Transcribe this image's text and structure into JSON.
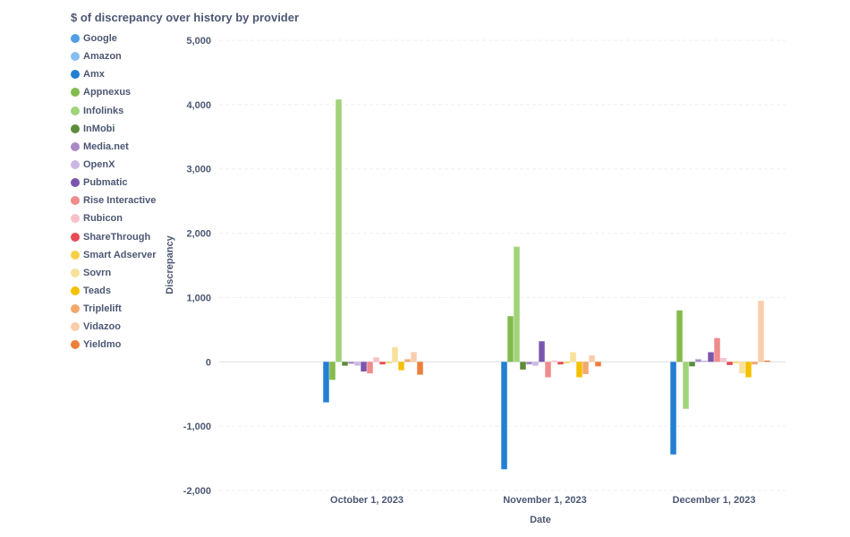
{
  "chart_data": {
    "type": "bar",
    "title": "$ of discrepancy over history by provider",
    "xlabel": "Date",
    "ylabel": "Discrepancy",
    "ylim": [
      -2000,
      5000
    ],
    "yticks": [
      -2000,
      -1000,
      0,
      1000,
      2000,
      3000,
      4000,
      5000
    ],
    "grid": true,
    "legend_position": "left",
    "categories": [
      "October 1, 2023",
      "November 1, 2023",
      "December 1, 2023"
    ],
    "series": [
      {
        "name": "Google",
        "color": "#509ee3",
        "values": [
          0,
          0,
          0
        ]
      },
      {
        "name": "Amazon",
        "color": "#88bff0",
        "values": [
          0,
          0,
          0
        ]
      },
      {
        "name": "Amx",
        "color": "#227fd2",
        "values": [
          -630,
          -1670,
          -1440
        ]
      },
      {
        "name": "Appnexus",
        "color": "#84bb4c",
        "values": [
          -280,
          710,
          800
        ]
      },
      {
        "name": "Infolinks",
        "color": "#a1d47a",
        "values": [
          4080,
          1790,
          -730
        ]
      },
      {
        "name": "InMobi",
        "color": "#5c8c3a",
        "values": [
          -60,
          -120,
          -70
        ]
      },
      {
        "name": "Media.net",
        "color": "#a989c5",
        "values": [
          -30,
          -40,
          40
        ]
      },
      {
        "name": "OpenX",
        "color": "#c9b8e4",
        "values": [
          -60,
          -60,
          20
        ]
      },
      {
        "name": "Pubmatic",
        "color": "#7b56ae",
        "values": [
          -150,
          320,
          150
        ]
      },
      {
        "name": "Rise Interactive",
        "color": "#ef8c8c",
        "values": [
          -180,
          -240,
          370
        ]
      },
      {
        "name": "Rubicon",
        "color": "#f6c1c9",
        "values": [
          70,
          20,
          60
        ]
      },
      {
        "name": "ShareThrough",
        "color": "#e84c55",
        "values": [
          -40,
          -40,
          -50
        ]
      },
      {
        "name": "Smart Adserver",
        "color": "#f9cf48",
        "values": [
          -20,
          -20,
          -20
        ]
      },
      {
        "name": "Sovrn",
        "color": "#f8e19a",
        "values": [
          230,
          150,
          -180
        ]
      },
      {
        "name": "Teads",
        "color": "#f5c002",
        "values": [
          -130,
          -240,
          -240
        ]
      },
      {
        "name": "Triplelift",
        "color": "#f2a86f",
        "values": [
          40,
          -190,
          -40
        ]
      },
      {
        "name": "Vidazoo",
        "color": "#f9cdab",
        "values": [
          150,
          100,
          950
        ]
      },
      {
        "name": "Yieldmo",
        "color": "#ee7f3a",
        "values": [
          -200,
          -70,
          20
        ]
      }
    ]
  }
}
